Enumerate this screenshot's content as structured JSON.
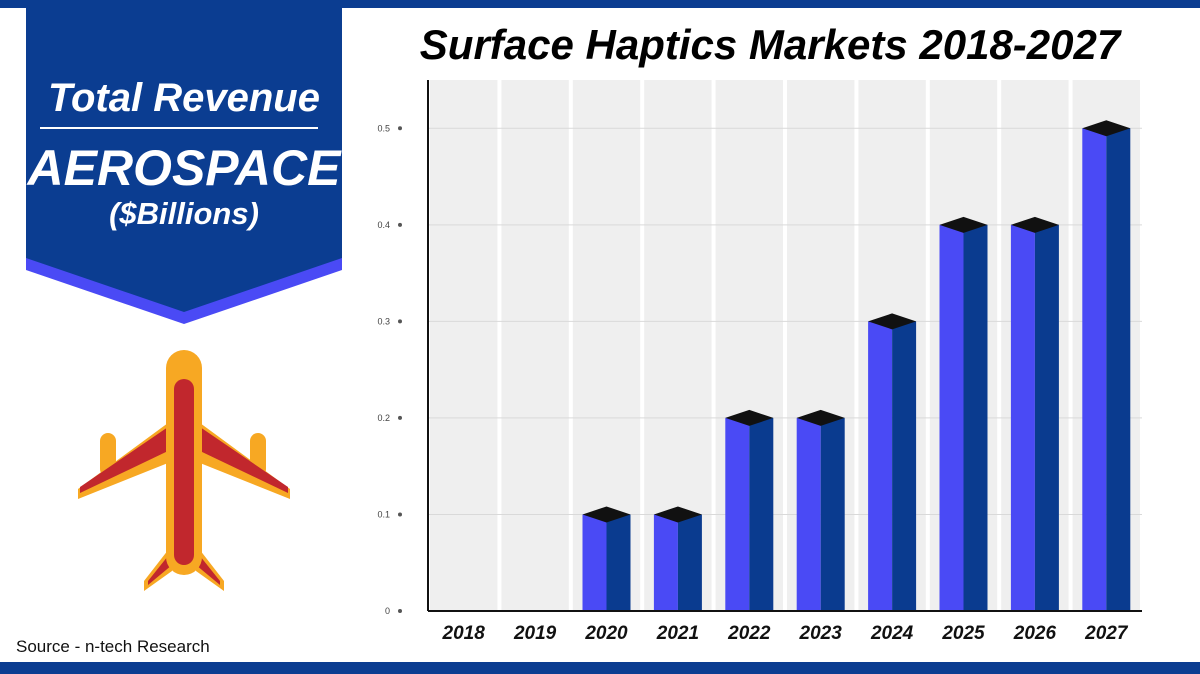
{
  "banner": {
    "title": "Total Revenue",
    "subtitle": "AEROSPACE",
    "unit": "($Billions)"
  },
  "source": "Source - n-tech Research",
  "colors": {
    "brand_blue": "#0b3d91",
    "bar_front": "#4a4af5",
    "bar_side": "#0a3b8f",
    "bar_cap": "#111111",
    "column_band": "#efefef",
    "plane_body": "#f7a823",
    "plane_stripe": "#c1272d"
  },
  "icons": {
    "plane": "airplane-icon"
  },
  "chart_data": {
    "type": "bar",
    "title": "Surface Haptics Markets 2018-2027",
    "xlabel": "",
    "ylabel": "",
    "categories": [
      "2018",
      "2019",
      "2020",
      "2021",
      "2022",
      "2023",
      "2024",
      "2025",
      "2026",
      "2027"
    ],
    "values": [
      0,
      0,
      0.1,
      0.1,
      0.2,
      0.2,
      0.3,
      0.4,
      0.4,
      0.5
    ],
    "ylim": [
      0,
      0.55
    ],
    "yticks": [
      0,
      0.1,
      0.2,
      0.3,
      0.4,
      0.5
    ],
    "ytick_labels": [
      "0",
      "0.1",
      "0.2",
      "0.3",
      "0.4",
      "0.5"
    ],
    "grid": true,
    "legend": "none"
  }
}
